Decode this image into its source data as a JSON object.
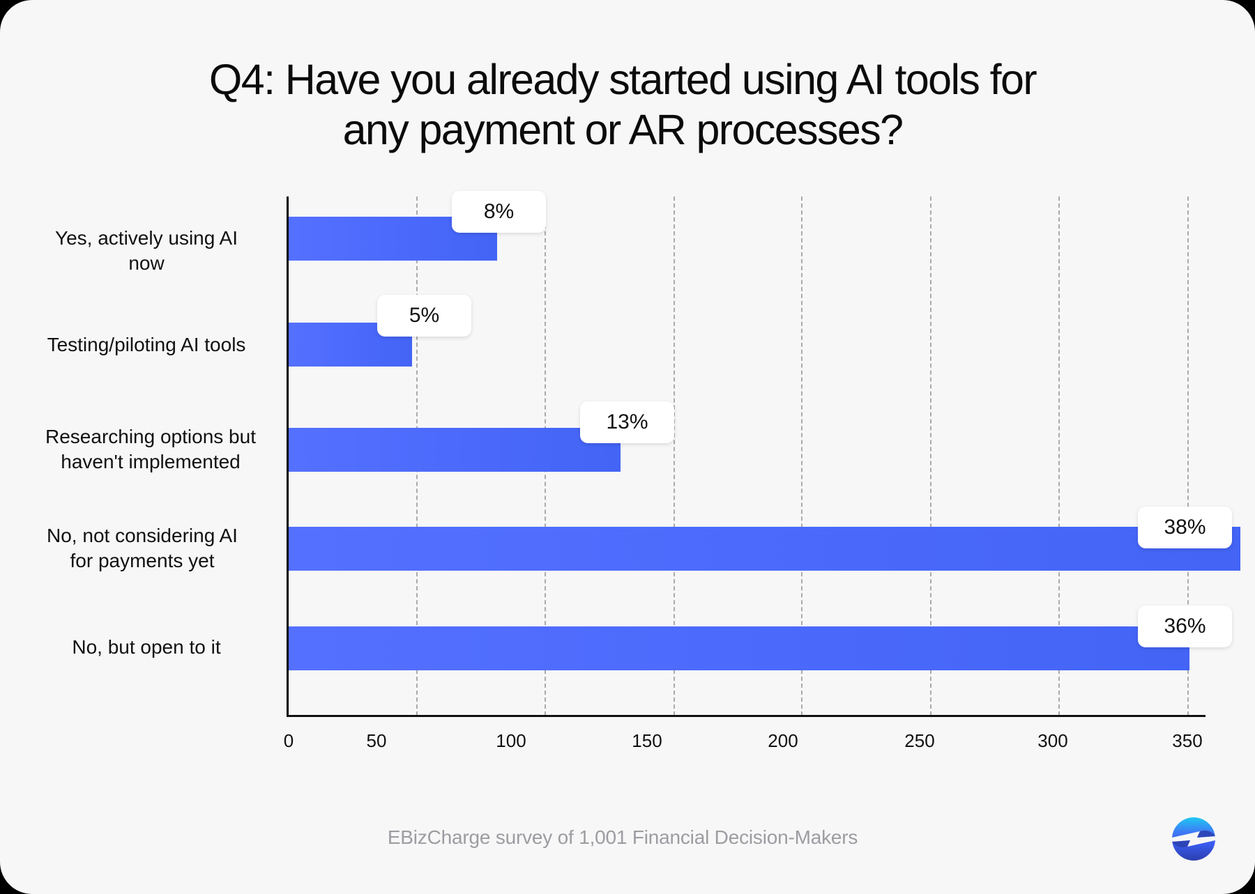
{
  "title": {
    "line1": "Q4: Have you already started using AI tools for",
    "line2": "any payment or AR processes?"
  },
  "footer": {
    "source": "EBizCharge survey of 1,001 Financial Decision-Makers"
  },
  "brand": {
    "logo": "ebizcharge-logo-icon",
    "bar_color": "#4F6BFF",
    "background": "#F7F7F7"
  },
  "chart_data": {
    "type": "bar",
    "orientation": "horizontal",
    "title": "Q4: Have you already started using AI tools for any payment or AR processes?",
    "xlabel": "",
    "ylabel": "",
    "xlim": [
      0,
      350
    ],
    "x_ticks": [
      "0",
      "50",
      "100",
      "150",
      "200",
      "250",
      "300",
      "350"
    ],
    "grid": "vertical dashed",
    "legend": "none",
    "categories": [
      "Yes, actively using AI now",
      "Testing/piloting AI tools",
      "Researching options but haven't implemented",
      "No, not considering AI for payments yet",
      "No, but open to it"
    ],
    "category_lines": [
      [
        "Yes, actively using AI",
        "now"
      ],
      [
        "Testing/piloting AI tools"
      ],
      [
        "Researching options but",
        "haven't implemented"
      ],
      [
        "No, not considering AI",
        "for payments yet"
      ],
      [
        "No, but open to it"
      ]
    ],
    "values": [
      81,
      48,
      129,
      370,
      350
    ],
    "labels": [
      "8%",
      "5%",
      "13%",
      "38%",
      "36%"
    ],
    "percent": [
      8,
      5,
      13,
      38,
      36
    ],
    "source": "EBizCharge survey of 1,001 Financial Decision-Makers"
  }
}
